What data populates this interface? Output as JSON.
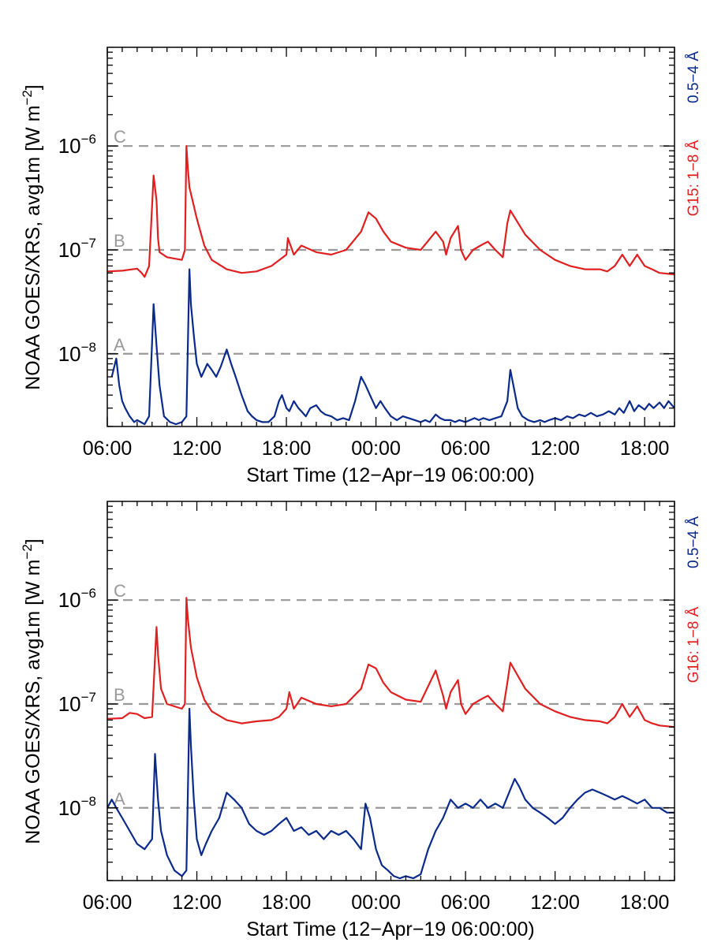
{
  "chart_data": [
    {
      "type": "line",
      "panel": "top",
      "title": "",
      "ylabel_main": "NOAA GOES/XRS, avg1m [W m",
      "ylabel_exp": "−2",
      "ylabel_close": "]",
      "xlabel": "Start Time (12−Apr−19 06:00:00)",
      "x_unit": "hours since 12-Apr-19 06:00:00",
      "xlim": [
        0,
        38
      ],
      "ylim_log10": [
        -8.7,
        -5.05
      ],
      "y_scale": "log",
      "x_ticks": [
        {
          "value": 0,
          "label": "06:00"
        },
        {
          "value": 6,
          "label": "12:00"
        },
        {
          "value": 12,
          "label": "18:00"
        },
        {
          "value": 18,
          "label": "00:00"
        },
        {
          "value": 24,
          "label": "06:00"
        },
        {
          "value": 30,
          "label": "12:00"
        },
        {
          "value": 36,
          "label": "18:00"
        }
      ],
      "y_ticks": [
        {
          "log": -8,
          "base": "10",
          "exp": "−8"
        },
        {
          "log": -7,
          "base": "10",
          "exp": "−7"
        },
        {
          "log": -6,
          "base": "10",
          "exp": "−6"
        }
      ],
      "flare_levels": [
        {
          "label": "A",
          "log": -8
        },
        {
          "label": "B",
          "log": -7
        },
        {
          "label": "C",
          "log": -6
        }
      ],
      "legend": [
        {
          "name": "0.5−4 Å",
          "color": "#0a2a8c"
        },
        {
          "name": "G15: 1−8 Å",
          "color": "#e02020"
        }
      ],
      "colors": {
        "long": "#e02020",
        "short": "#0a2a8c",
        "levels": "#999999"
      },
      "series": [
        {
          "name": "G15: 1−8 Å",
          "band": "1−8 Å",
          "x": [
            0,
            1,
            2,
            2.3,
            2.5,
            2.8,
            3.1,
            3.3,
            3.4,
            3.5,
            4,
            5,
            5.2,
            5.3,
            5.4,
            5.5,
            6,
            6.5,
            7,
            8,
            9,
            10,
            11,
            12,
            12.1,
            12.5,
            13,
            14,
            15,
            16,
            17,
            17.5,
            18,
            18.5,
            19,
            20,
            21,
            22,
            22.5,
            22.7,
            23,
            23.5,
            23.7,
            24,
            24.5,
            25,
            25.5,
            26,
            26.5,
            26.8,
            27,
            28,
            29,
            30,
            31,
            32,
            33,
            33.5,
            34,
            34.5,
            35,
            35.5,
            36,
            36.5,
            37,
            38
          ],
          "values": [
            6.2e-08,
            6.3e-08,
            6.6e-08,
            6e-08,
            5.5e-08,
            7e-08,
            5.2e-07,
            3e-07,
            1.3e-07,
            9.5e-08,
            8.5e-08,
            8e-08,
            1e-07,
            1e-06,
            6e-07,
            4e-07,
            2e-07,
            1.1e-07,
            8e-08,
            6.5e-08,
            6e-08,
            6.2e-08,
            7e-08,
            9e-08,
            1.3e-07,
            9e-08,
            1.1e-07,
            9.5e-08,
            9e-08,
            1e-07,
            1.5e-07,
            2.3e-07,
            2e-07,
            1.5e-07,
            1.2e-07,
            1.05e-07,
            1e-07,
            1.5e-07,
            1.2e-07,
            9e-08,
            1.3e-07,
            1.7e-07,
            1e-07,
            8e-08,
            1e-07,
            1.1e-07,
            1.2e-07,
            1e-07,
            8.5e-08,
            1.8e-07,
            2.4e-07,
            1.4e-07,
            1e-07,
            8e-08,
            7e-08,
            6.5e-08,
            6.5e-08,
            6.2e-08,
            7e-08,
            9e-08,
            7e-08,
            9e-08,
            7e-08,
            6.5e-08,
            6e-08,
            5.8e-08
          ]
        },
        {
          "name": "0.5−4 Å",
          "band": "0.5−4 Å",
          "x": [
            0.3,
            0.6,
            0.8,
            1,
            1.2,
            1.5,
            1.8,
            2,
            2.5,
            2.8,
            3,
            3.1,
            3.3,
            3.5,
            3.8,
            4.2,
            4.6,
            5,
            5.3,
            5.5,
            5.6,
            5.8,
            6,
            6.3,
            6.7,
            7,
            7.3,
            7.6,
            8,
            8.3,
            8.6,
            9,
            9.4,
            9.7,
            10,
            10.4,
            10.8,
            11.2,
            11.5,
            11.7,
            12,
            12.2,
            12.5,
            12.8,
            13,
            13.3,
            13.6,
            14,
            14.3,
            14.6,
            15,
            15.4,
            15.8,
            16.2,
            16.6,
            17,
            17.3,
            17.6,
            18,
            18.3,
            18.6,
            19,
            19.4,
            19.8,
            20.2,
            20.6,
            21,
            21.3,
            21.6,
            22,
            22.3,
            22.6,
            23,
            23.3,
            23.6,
            24,
            24.3,
            24.6,
            24.9,
            25.2,
            25.6,
            26,
            26.4,
            26.8,
            27,
            27.2,
            27.5,
            27.8,
            28.2,
            28.6,
            29,
            29.3,
            29.6,
            30,
            30.4,
            30.8,
            31.2,
            31.6,
            32,
            32.4,
            32.8,
            33.2,
            33.6,
            34,
            34.3,
            34.6,
            35,
            35.3,
            35.6,
            36,
            36.3,
            36.6,
            37,
            37.3,
            37.6,
            38
          ],
          "values": [
            6e-09,
            9e-09,
            5e-09,
            3.5e-09,
            3e-09,
            2.5e-09,
            2.2e-09,
            2.3e-09,
            2.1e-09,
            2.5e-09,
            1.3e-08,
            3e-08,
            1.2e-08,
            5e-09,
            2.5e-09,
            2.2e-09,
            2.1e-09,
            2.2e-09,
            2.5e-09,
            6.5e-08,
            3e-08,
            1.5e-08,
            8e-09,
            6e-09,
            8e-09,
            7e-09,
            6e-09,
            7.5e-09,
            1.1e-08,
            8e-09,
            6e-09,
            4e-09,
            2.8e-09,
            2.5e-09,
            2.3e-09,
            2.2e-09,
            2.2e-09,
            2.5e-09,
            3.5e-09,
            4e-09,
            3e-09,
            2.8e-09,
            3.5e-09,
            3e-09,
            2.8e-09,
            2.5e-09,
            3e-09,
            3.2e-09,
            2.8e-09,
            2.6e-09,
            2.5e-09,
            2.3e-09,
            2.4e-09,
            2.3e-09,
            3.5e-09,
            6e-09,
            5e-09,
            4e-09,
            3e-09,
            3.5e-09,
            3e-09,
            2.5e-09,
            2.3e-09,
            2.5e-09,
            2.4e-09,
            2.3e-09,
            2.2e-09,
            2.3e-09,
            2.2e-09,
            2.6e-09,
            2.4e-09,
            2.3e-09,
            2.3e-09,
            2.2e-09,
            2.3e-09,
            2.2e-09,
            2.3e-09,
            2.4e-09,
            2.3e-09,
            2.4e-09,
            2.3e-09,
            2.4e-09,
            2.5e-09,
            3.5e-09,
            7e-09,
            5e-09,
            3e-09,
            2.5e-09,
            2.3e-09,
            2.2e-09,
            2.3e-09,
            2.2e-09,
            2.3e-09,
            2.4e-09,
            2.3e-09,
            2.5e-09,
            2.4e-09,
            2.6e-09,
            2.5e-09,
            2.7e-09,
            2.5e-09,
            2.6e-09,
            2.8e-09,
            2.6e-09,
            3e-09,
            2.7e-09,
            3.5e-09,
            2.8e-09,
            3.2e-09,
            2.9e-09,
            3.3e-09,
            3e-09,
            3.4e-09,
            3e-09,
            3.5e-09,
            3e-09
          ]
        }
      ]
    },
    {
      "type": "line",
      "panel": "bottom",
      "title": "",
      "ylabel_main": "NOAA GOES/XRS, avg1m [W m",
      "ylabel_exp": "−2",
      "ylabel_close": "]",
      "xlabel": "Start Time (12−Apr−19 06:00:00)",
      "x_unit": "hours since 12-Apr-19 06:00:00",
      "xlim": [
        0,
        38
      ],
      "ylim_log10": [
        -8.7,
        -5.05
      ],
      "y_scale": "log",
      "x_ticks": [
        {
          "value": 0,
          "label": "06:00"
        },
        {
          "value": 6,
          "label": "12:00"
        },
        {
          "value": 12,
          "label": "18:00"
        },
        {
          "value": 18,
          "label": "00:00"
        },
        {
          "value": 24,
          "label": "06:00"
        },
        {
          "value": 30,
          "label": "12:00"
        },
        {
          "value": 36,
          "label": "18:00"
        }
      ],
      "y_ticks": [
        {
          "log": -8,
          "base": "10",
          "exp": "−8"
        },
        {
          "log": -7,
          "base": "10",
          "exp": "−7"
        },
        {
          "log": -6,
          "base": "10",
          "exp": "−6"
        }
      ],
      "flare_levels": [
        {
          "label": "A",
          "log": -8
        },
        {
          "label": "B",
          "log": -7
        },
        {
          "label": "C",
          "log": -6
        }
      ],
      "legend": [
        {
          "name": "0.5−4 Å",
          "color": "#0a2a8c"
        },
        {
          "name": "G16: 1−8 Å",
          "color": "#e02020"
        }
      ],
      "colors": {
        "long": "#e02020",
        "short": "#0a2a8c",
        "levels": "#999999"
      },
      "series": [
        {
          "name": "G16: 1−8 Å",
          "band": "1−8 Å",
          "x": [
            0,
            1,
            1.5,
            2,
            2.5,
            3,
            3.3,
            3.4,
            3.6,
            4,
            5,
            5.2,
            5.3,
            5.4,
            5.6,
            6,
            6.5,
            7,
            8,
            9,
            10,
            11,
            11.5,
            12,
            12.2,
            12.5,
            13,
            14,
            15,
            16,
            17,
            17.5,
            18,
            18.5,
            19,
            20,
            21,
            22,
            22.5,
            22.7,
            23,
            23.5,
            23.7,
            24,
            24.5,
            25,
            25.5,
            26,
            26.5,
            26.8,
            27,
            28,
            29,
            30,
            31,
            32,
            33,
            33.5,
            34,
            34.5,
            35,
            35.5,
            36,
            36.5,
            37,
            38
          ],
          "values": [
            7.2e-08,
            7.3e-08,
            8.2e-08,
            8e-08,
            7.3e-08,
            7.5e-08,
            5.5e-07,
            3e-07,
            1.4e-07,
            1e-07,
            9e-08,
            1e-07,
            1.05e-06,
            6.5e-07,
            3.5e-07,
            1.8e-07,
            1.1e-07,
            8.5e-08,
            7e-08,
            6.5e-08,
            6.8e-08,
            7e-08,
            7.5e-08,
            9e-08,
            1.3e-07,
            9e-08,
            1.15e-07,
            1e-07,
            9.5e-08,
            1e-07,
            1.4e-07,
            2.4e-07,
            2.2e-07,
            1.6e-07,
            1.3e-07,
            1.1e-07,
            1.05e-07,
            2.1e-07,
            1.2e-07,
            9e-08,
            1.3e-07,
            1.7e-07,
            1e-07,
            8e-08,
            1e-07,
            1.1e-07,
            1.2e-07,
            1e-07,
            8.5e-08,
            1.6e-07,
            2.5e-07,
            1.4e-07,
            1e-07,
            8.5e-08,
            7.5e-08,
            7e-08,
            6.8e-08,
            6.5e-08,
            7.5e-08,
            1e-07,
            7.5e-08,
            9.5e-08,
            7e-08,
            6.5e-08,
            6.2e-08,
            6e-08
          ]
        },
        {
          "name": "0.5−4 Å",
          "band": "0.5−4 Å",
          "x": [
            0,
            0.3,
            0.6,
            1,
            1.5,
            2,
            2.5,
            3,
            3.2,
            3.4,
            3.6,
            4,
            4.5,
            5,
            5.3,
            5.5,
            5.6,
            5.8,
            6,
            6.3,
            6.6,
            7,
            7.5,
            8,
            8.5,
            9,
            9.5,
            10,
            10.5,
            11,
            11.5,
            12,
            12.5,
            13,
            13.5,
            14,
            14.5,
            15,
            15.5,
            16,
            16.5,
            17,
            17.3,
            17.6,
            18,
            18.4,
            18.8,
            19.2,
            19.6,
            20,
            20.5,
            21,
            21.5,
            22,
            22.5,
            23,
            23.5,
            24,
            24.5,
            25,
            25.5,
            26,
            26.5,
            27,
            27.3,
            27.6,
            28,
            28.5,
            29,
            29.5,
            30,
            30.5,
            31,
            31.5,
            32,
            32.5,
            33,
            33.5,
            34,
            34.5,
            35,
            35.5,
            36,
            36.5,
            37,
            37.5,
            38
          ],
          "values": [
            1e-08,
            1.2e-08,
            1e-08,
            8e-09,
            6e-09,
            4.5e-09,
            4e-09,
            5e-09,
            3.3e-08,
            1.2e-08,
            6e-09,
            3.5e-09,
            2.5e-09,
            2.2e-09,
            2.5e-09,
            9e-08,
            4e-08,
            1.2e-08,
            5e-09,
            3.5e-09,
            4.5e-09,
            6e-09,
            8e-09,
            1.4e-08,
            1.2e-08,
            1e-08,
            7e-09,
            6e-09,
            5.5e-09,
            6e-09,
            7e-09,
            8e-09,
            6e-09,
            6.5e-09,
            5.5e-09,
            6e-09,
            5e-09,
            6e-09,
            5.5e-09,
            6e-09,
            5e-09,
            4e-09,
            1.1e-08,
            8e-09,
            4e-09,
            2.8e-09,
            2.5e-09,
            2.2e-09,
            2.1e-09,
            2.2e-09,
            2.1e-09,
            2.3e-09,
            4e-09,
            6e-09,
            8e-09,
            1.2e-08,
            1e-08,
            1.1e-08,
            1e-08,
            1.2e-08,
            1e-08,
            1.1e-08,
            1e-08,
            1.5e-08,
            1.9e-08,
            1.6e-08,
            1.2e-08,
            1e-08,
            9e-09,
            8e-09,
            7e-09,
            8e-09,
            1e-08,
            1.2e-08,
            1.4e-08,
            1.5e-08,
            1.4e-08,
            1.3e-08,
            1.2e-08,
            1.3e-08,
            1.2e-08,
            1.1e-08,
            1.2e-08,
            1e-08,
            1e-08,
            9e-09,
            9e-09
          ]
        }
      ]
    }
  ]
}
